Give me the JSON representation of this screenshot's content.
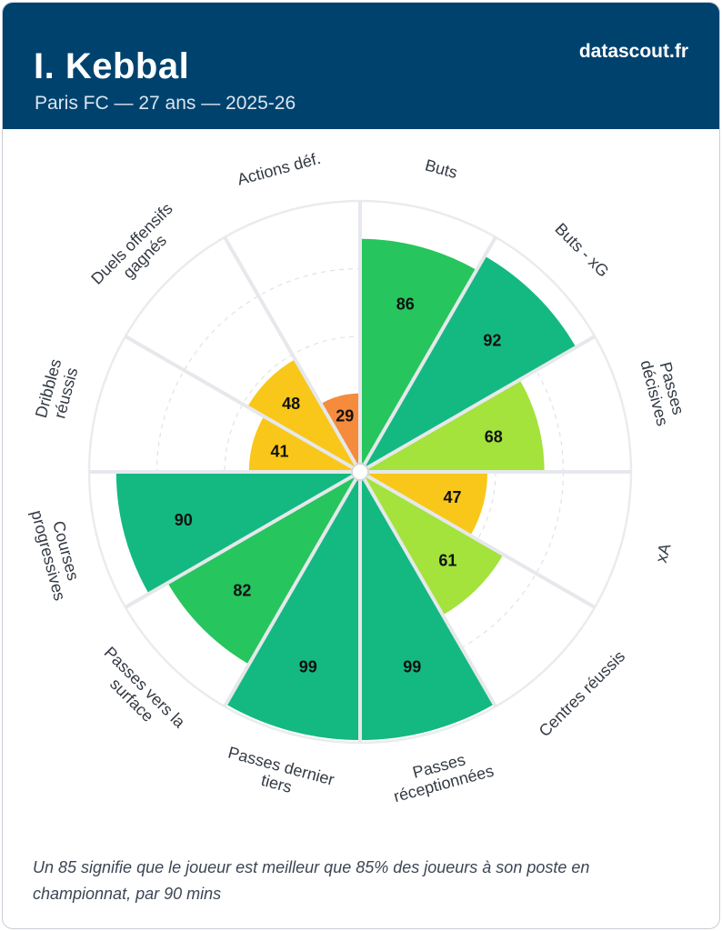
{
  "header": {
    "name": "I. Kebbal",
    "subtitle": "Paris FC — 27 ans — 2025-26",
    "brand": "datascout.fr"
  },
  "chart_data": {
    "type": "radial-bar",
    "title": "I. Kebbal",
    "subtitle": "Paris FC — 27 ans — 2025-26",
    "range": [
      0,
      100
    ],
    "grid_levels": [
      25,
      50,
      75
    ],
    "categories": [
      {
        "label": [
          "Buts"
        ],
        "value": 86
      },
      {
        "label": [
          "Buts - xG"
        ],
        "value": 92
      },
      {
        "label": [
          "Passes",
          "décisives"
        ],
        "value": 68
      },
      {
        "label": [
          "xA"
        ],
        "value": 47
      },
      {
        "label": [
          "Centres réussis"
        ],
        "value": 61
      },
      {
        "label": [
          "Passes",
          "réceptionnées"
        ],
        "value": 99
      },
      {
        "label": [
          "Passes dernier",
          "tiers"
        ],
        "value": 99
      },
      {
        "label": [
          "Passes vers la",
          "surface"
        ],
        "value": 82
      },
      {
        "label": [
          "Courses",
          "progressives"
        ],
        "value": 90
      },
      {
        "label": [
          "Dribbles",
          "réussis"
        ],
        "value": 41
      },
      {
        "label": [
          "Duels offensifs",
          "gagnés"
        ],
        "value": 48
      },
      {
        "label": [
          "Actions déf."
        ],
        "value": 29
      }
    ]
  },
  "colors": {
    "header_bg": "#00426e",
    "very_high": "#13b981",
    "high": "#26c55e",
    "medium_high": "#a4e23c",
    "medium": "#f8c719",
    "low": "#f58b3c",
    "grid": "#e9ecef",
    "separator": "#e6e8eb"
  },
  "footnote": "Un 85 signifie que le joueur est meilleur que 85% des joueurs à son poste en championnat, par 90 mins"
}
